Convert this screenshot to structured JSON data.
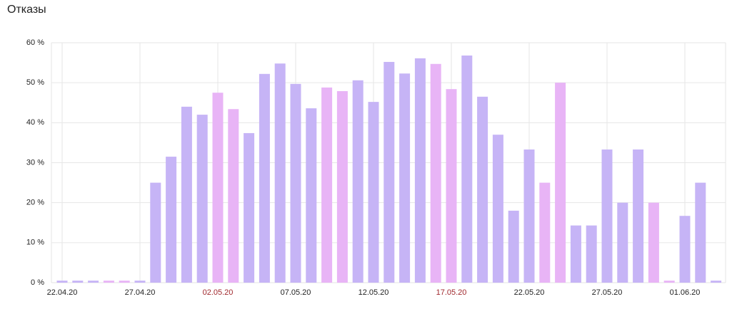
{
  "chart_data": {
    "type": "bar",
    "title": "Отказы",
    "categories": [
      "22.04.20",
      null,
      null,
      null,
      null,
      "27.04.20",
      null,
      null,
      null,
      null,
      "02.05.20",
      null,
      null,
      null,
      null,
      "07.05.20",
      null,
      null,
      null,
      null,
      "12.05.20",
      null,
      null,
      null,
      null,
      "17.05.20",
      null,
      null,
      null,
      null,
      "22.05.20",
      null,
      null,
      null,
      null,
      "27.05.20",
      null,
      null,
      null,
      null,
      "01.06.20",
      null,
      null
    ],
    "values": [
      0.5,
      0.5,
      0.5,
      0.5,
      0.5,
      0.5,
      25,
      31.5,
      44,
      42,
      47.5,
      43.4,
      37.4,
      52.2,
      54.8,
      49.7,
      43.6,
      48.8,
      47.9,
      50.6,
      45.2,
      55.2,
      52.3,
      56.1,
      54.7,
      48.4,
      56.8,
      46.5,
      37,
      18,
      33.3,
      25,
      50,
      14.3,
      14.3,
      33.3,
      20,
      33.3,
      20,
      0.5,
      16.7,
      25,
      0.5
    ],
    "colors": [
      "#c6b4f6",
      "#c6b4f6",
      "#c6b4f6",
      "#e8b4f6",
      "#e8b4f6",
      "#c6b4f6",
      "#c6b4f6",
      "#c6b4f6",
      "#c6b4f6",
      "#c6b4f6",
      "#e8b4f6",
      "#e8b4f6",
      "#c6b4f6",
      "#c6b4f6",
      "#c6b4f6",
      "#c6b4f6",
      "#c6b4f6",
      "#e8b4f6",
      "#e8b4f6",
      "#c6b4f6",
      "#c6b4f6",
      "#c6b4f6",
      "#c6b4f6",
      "#c6b4f6",
      "#e8b4f6",
      "#e8b4f6",
      "#c6b4f6",
      "#c6b4f6",
      "#c6b4f6",
      "#c6b4f6",
      "#c6b4f6",
      "#e8b4f6",
      "#e8b4f6",
      "#c6b4f6",
      "#c6b4f6",
      "#c6b4f6",
      "#c6b4f6",
      "#c6b4f6",
      "#e8b4f6",
      "#e8b4f6",
      "#c6b4f6",
      "#c6b4f6",
      "#c6b4f6"
    ],
    "ylim": [
      0,
      60
    ],
    "yticks": [
      {
        "value": 0,
        "label": "0 %"
      },
      {
        "value": 10,
        "label": "10 %"
      },
      {
        "value": 20,
        "label": "20 %"
      },
      {
        "value": 30,
        "label": "30 %"
      },
      {
        "value": 40,
        "label": "40 %"
      },
      {
        "value": 50,
        "label": "50 %"
      },
      {
        "value": 60,
        "label": "60 %"
      }
    ],
    "grid": true
  }
}
